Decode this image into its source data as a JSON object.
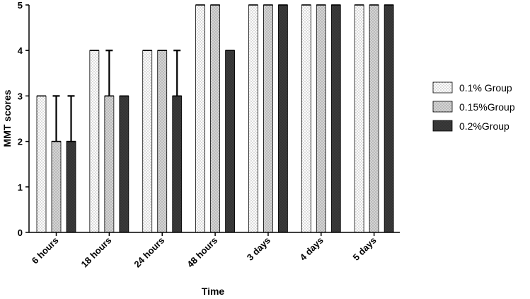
{
  "chart_data": {
    "type": "bar",
    "title": "",
    "xlabel": "Time",
    "ylabel": "MMT scores",
    "ylim": [
      0,
      5
    ],
    "yticks": [
      0,
      1,
      2,
      3,
      4,
      5
    ],
    "grid": false,
    "legend_position": "right",
    "categories": [
      "6 hours",
      "18 hours",
      "24 hours",
      "48 hours",
      "3 days",
      "4 days",
      "5 days"
    ],
    "series": [
      {
        "name": "0.1% Group",
        "pattern": "dotted-white",
        "color": "#ffffff",
        "values": [
          3,
          4,
          4,
          5,
          5,
          5,
          5
        ],
        "error_upper": [
          null,
          null,
          null,
          null,
          null,
          null,
          null
        ]
      },
      {
        "name": "0.15%Group",
        "pattern": "dotted-gray",
        "color": "#d4d4d4",
        "values": [
          2,
          3,
          4,
          5,
          5,
          5,
          5
        ],
        "error_upper": [
          3,
          4,
          null,
          null,
          null,
          null,
          null
        ]
      },
      {
        "name": "0.2%Group",
        "pattern": "dotted-black",
        "color": "#3a3a3a",
        "values": [
          2,
          3,
          3,
          4,
          5,
          5,
          5
        ],
        "error_upper": [
          3,
          null,
          4,
          null,
          null,
          null,
          null
        ]
      }
    ]
  }
}
